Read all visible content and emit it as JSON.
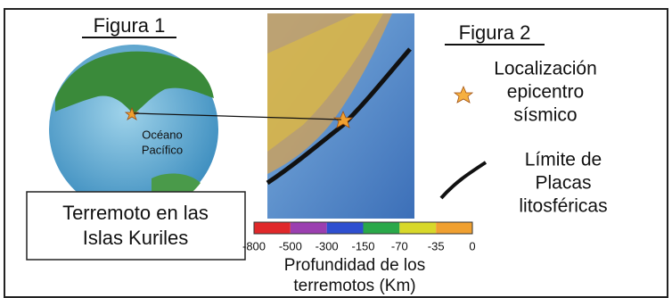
{
  "figure1": {
    "title": "Figura 1",
    "ocean_label": [
      "Océano",
      "Pacífico"
    ]
  },
  "figure2": {
    "title": "Figura 2"
  },
  "legend": {
    "epicenter": [
      "Localización",
      "epicentro",
      "sísmico"
    ],
    "plate_boundary": [
      "Límite de",
      "Placas",
      "litosféricas"
    ]
  },
  "caption_box": [
    "Terremoto en las",
    "Islas Kuriles"
  ],
  "depth_scale": {
    "ticks": [
      "-800",
      "-500",
      "-300",
      "-150",
      "-70",
      "-35",
      "0"
    ],
    "colors": [
      "#e0282a",
      "#9b3fb0",
      "#2f4fd0",
      "#2aa84a",
      "#d8d82a",
      "#f0a030"
    ],
    "label": [
      "Profundidad de los",
      "terremotos (Km)"
    ]
  }
}
